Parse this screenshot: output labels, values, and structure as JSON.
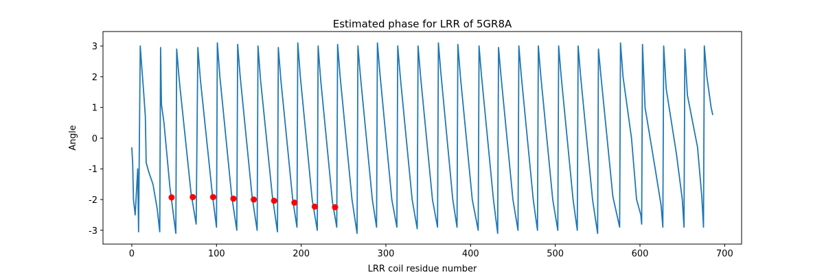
{
  "chart_data": {
    "type": "line",
    "title": "Estimated phase for LRR of 5GR8A",
    "x_label": "LRR coil residue number",
    "y_label": "Angle",
    "xlim": [
      -34,
      720
    ],
    "ylim": [
      -3.45,
      3.47
    ],
    "xticks": [
      0,
      100,
      200,
      300,
      400,
      500,
      600,
      700
    ],
    "yticks": [
      -3,
      -2,
      -1,
      0,
      1,
      2,
      3
    ],
    "series": [
      {
        "type": "line",
        "color": "#1f77b4",
        "x": [
          0,
          1,
          2,
          4,
          7,
          8,
          10,
          11,
          14,
          16,
          17,
          20,
          25,
          30,
          33,
          34,
          35,
          38,
          45,
          52,
          53,
          56,
          70,
          76,
          78,
          81,
          95,
          100,
          101,
          104,
          118,
          124,
          125,
          128,
          142,
          148,
          149,
          152,
          166,
          172,
          173,
          176,
          190,
          195,
          196,
          199,
          213,
          219,
          220,
          223,
          237,
          242,
          243,
          246,
          260,
          266,
          267,
          270,
          284,
          289,
          290,
          293,
          307,
          313,
          314,
          317,
          331,
          337,
          338,
          341,
          355,
          361,
          362,
          365,
          379,
          384,
          385,
          388,
          402,
          409,
          410,
          413,
          427,
          432,
          433,
          436,
          450,
          456,
          457,
          460,
          474,
          479,
          480,
          483,
          497,
          503,
          504,
          507,
          521,
          526,
          527,
          530,
          544,
          550,
          551,
          554,
          568,
          576,
          577,
          580,
          590,
          596,
          601,
          602,
          603,
          606,
          618,
          625,
          627,
          628,
          631,
          643,
          650,
          652,
          653,
          656,
          668,
          673,
          675,
          676,
          679,
          684,
          686
        ],
        "values": [
          -0.3,
          -0.8,
          -2.0,
          -2.5,
          -1.0,
          -3.05,
          3.0,
          2.6,
          1.5,
          0.7,
          -0.8,
          -1.1,
          -1.5,
          -2.3,
          -3.05,
          2.95,
          1.1,
          0.5,
          -1.6,
          -3.1,
          2.9,
          1.9,
          -1.8,
          -2.8,
          2.95,
          1.9,
          -1.8,
          -2.9,
          3.1,
          2.0,
          -1.9,
          -3.0,
          3.05,
          2.0,
          -1.9,
          -3.0,
          3.0,
          1.9,
          -1.9,
          -3.05,
          2.95,
          1.9,
          -2.0,
          -2.9,
          3.1,
          2.0,
          -2.0,
          -3.0,
          3.0,
          1.9,
          -2.1,
          -2.9,
          3.05,
          2.0,
          -2.0,
          -3.1,
          3.0,
          2.0,
          -2.0,
          -2.9,
          3.1,
          2.1,
          -2.0,
          -2.9,
          3.0,
          2.0,
          -2.0,
          -2.95,
          3.0,
          2.0,
          -2.0,
          -2.9,
          3.1,
          2.1,
          -2.0,
          -2.9,
          3.05,
          2.0,
          -2.0,
          -3.0,
          3.0,
          2.0,
          -2.0,
          -3.1,
          2.95,
          2.0,
          -2.0,
          -3.0,
          3.0,
          2.0,
          -2.0,
          -3.0,
          3.0,
          2.0,
          -2.0,
          -3.0,
          3.0,
          2.0,
          -2.0,
          -3.0,
          3.0,
          2.0,
          -2.0,
          -3.1,
          2.9,
          2.0,
          -1.9,
          -2.9,
          3.1,
          2.0,
          0,
          -2.0,
          -2.5,
          -2.8,
          3.05,
          1.0,
          -1.0,
          -2.2,
          -2.9,
          3.0,
          1.6,
          -0.5,
          -2.0,
          -2.9,
          2.9,
          1.4,
          -0.3,
          -1.9,
          -2.9,
          3.0,
          2.0,
          1.0,
          0.75
        ]
      },
      {
        "type": "scatter",
        "color": "#ff0000",
        "x": [
          47,
          72,
          96,
          120,
          144,
          168,
          192,
          216,
          240
        ],
        "values": [
          -1.93,
          -1.92,
          -1.92,
          -1.97,
          -2.0,
          -2.04,
          -2.1,
          -2.23,
          -2.25
        ]
      }
    ]
  }
}
